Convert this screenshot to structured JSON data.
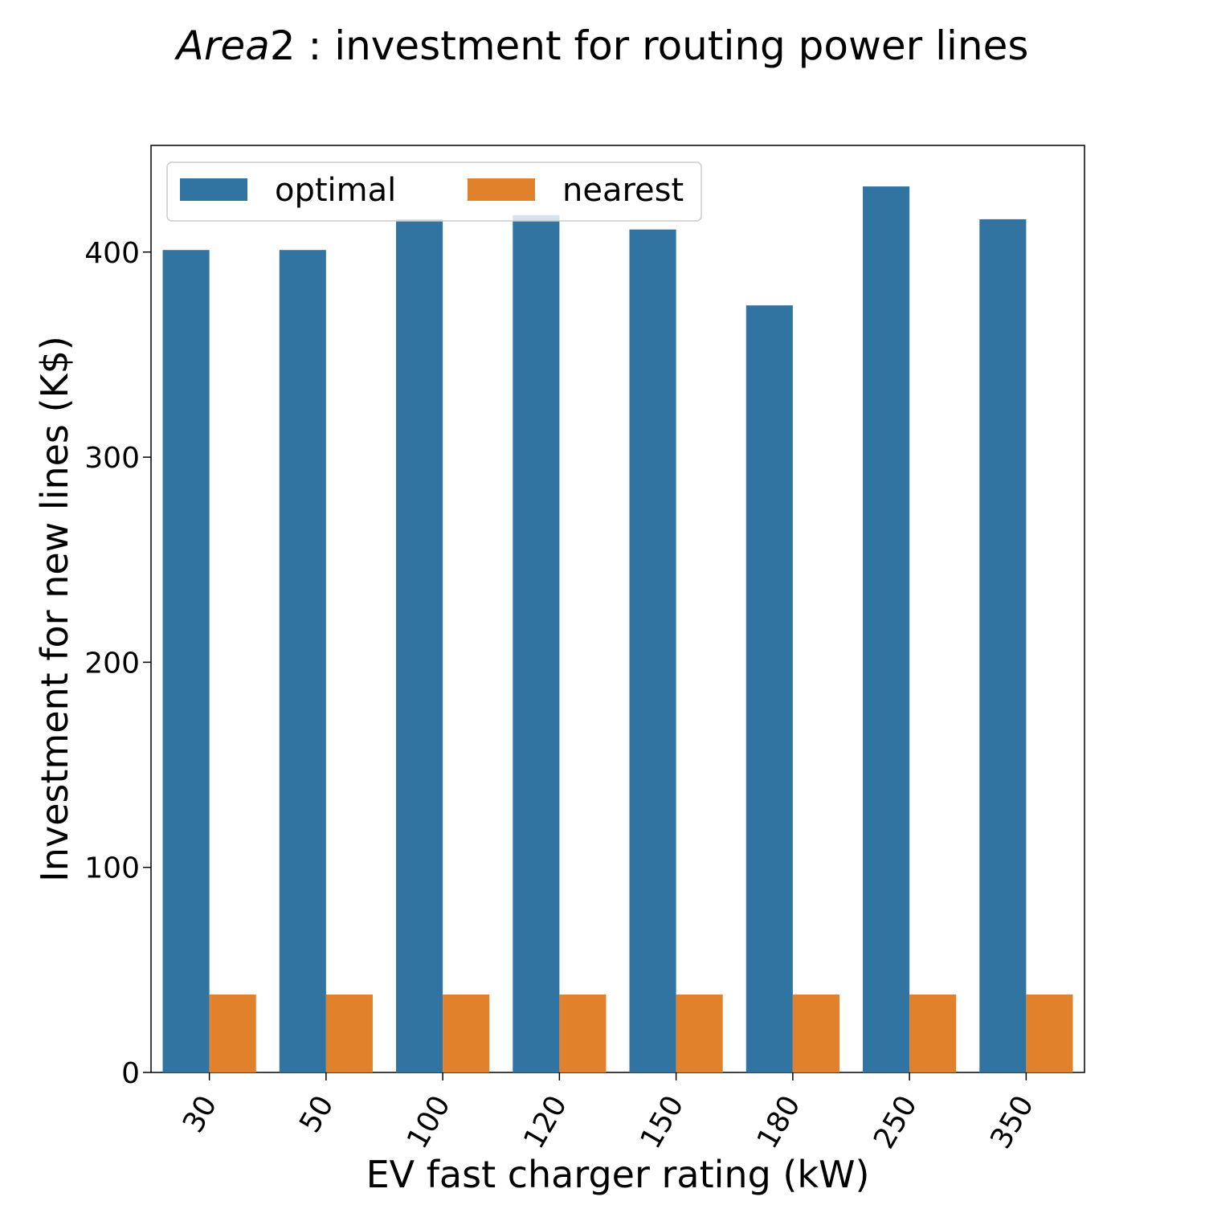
{
  "chart_data": {
    "type": "bar",
    "title_italic": "Area",
    "title_rest": "2 : investment for routing power lines",
    "xlabel": "EV fast charger rating (kW)",
    "ylabel": "Investment for new lines (K$)",
    "categories": [
      "30",
      "50",
      "100",
      "120",
      "150",
      "180",
      "250",
      "350"
    ],
    "series": [
      {
        "name": "optimal",
        "color": "#3274a1",
        "values": [
          401,
          401,
          416,
          418,
          411,
          374,
          432,
          416
        ]
      },
      {
        "name": "nearest",
        "color": "#e1812c",
        "values": [
          38,
          38,
          38,
          38,
          38,
          38,
          38,
          38
        ]
      }
    ],
    "ylim": [
      0,
      452
    ],
    "yticks": [
      0,
      100,
      200,
      300,
      400
    ],
    "ytick_labels": [
      "0",
      "100",
      "200",
      "300",
      "400"
    ],
    "grid": false,
    "legend": "top-left"
  }
}
